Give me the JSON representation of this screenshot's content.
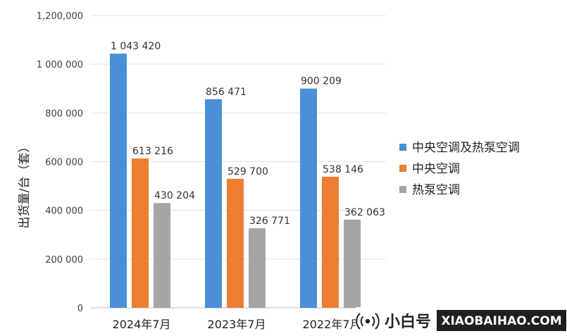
{
  "chart_data": {
    "type": "bar",
    "title": "",
    "xlabel": "",
    "ylabel": "出货量/台（套）",
    "ylim": [
      0,
      1200000
    ],
    "yticks": [
      0,
      200000,
      400000,
      600000,
      800000,
      1000000,
      1200000
    ],
    "ytick_labels": [
      "0",
      "200 000",
      "400 000",
      "600 000",
      "800 000",
      "1 000 000",
      "1,200,000"
    ],
    "categories": [
      "2024年7月",
      "2023年7月",
      "2022年7月"
    ],
    "series": [
      {
        "name": "中央空调及热泵空调",
        "color": "#4A90D9",
        "values": [
          1043420,
          856471,
          900209
        ],
        "labels": [
          "1 043 420",
          "856 471",
          "900 209"
        ]
      },
      {
        "name": "中央空调",
        "color": "#ED7D31",
        "values": [
          613216,
          529700,
          538146
        ],
        "labels": [
          "613 216",
          "529 700",
          "538 146"
        ]
      },
      {
        "name": "热泵空调",
        "color": "#A5A5A5",
        "values": [
          430204,
          326771,
          362063
        ],
        "labels": [
          "430 204",
          "326 771",
          "362 063"
        ]
      }
    ],
    "grid": true,
    "legend_position": "right"
  },
  "watermark": {
    "brand_cn": "小白号",
    "brand_en": "XIAOBAIHAO.COM"
  }
}
